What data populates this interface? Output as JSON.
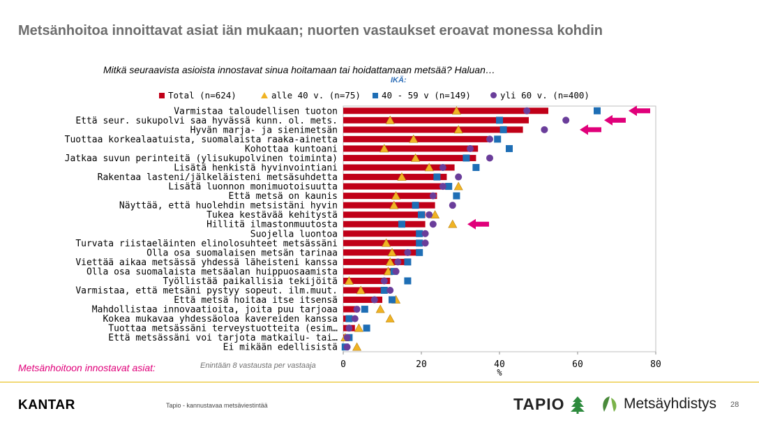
{
  "title": "Metsänhoitoa innoittavat asiat iän mukaan; nuorten vastaukset eroavat monessa kohdin",
  "question": "Mitkä seuraavista asioista innostavat sinua hoitamaan tai hoidattamaan metsää? Haluan…",
  "age_label": "IKÄ:",
  "footer": {
    "section_label": "Metsänhoitoon innostavat asiat:",
    "footnote": "Enintään 8 vastausta per vastaaja",
    "brand_left": "KANTAR",
    "source": "Tapio - kannustavaa metsäviestintää",
    "brand_tapio": "TAPIO",
    "brand_metsa": "Metsäyhdistys",
    "page_number": "28"
  },
  "colors": {
    "total": "#c00018",
    "under40": "#f0b323",
    "age40_59": "#1e6eb5",
    "over60": "#6a3d9a",
    "arrow": "#e0007a",
    "title": "#6d6d6d"
  },
  "chart_data": {
    "type": "bar",
    "orientation": "horizontal",
    "xlabel": "%",
    "xlim": [
      0,
      80
    ],
    "xticks": [
      0,
      20,
      40,
      60,
      80
    ],
    "grid": false,
    "legend_position": "top",
    "categories": [
      "Varmistaa taloudellisen tuoton",
      "Että seur. sukupolvi saa hyvässä kunn. ol. mets.",
      "Hyvän marja- ja sienimetsän",
      "Tuottaa korkealaatuista, suomalaista raaka-ainetta",
      "Kohottaa kuntoani",
      "Jatkaa suvun perinteitä (ylisukupolvinen toiminta)",
      "Lisätä henkistä hyvinvointiani",
      "Rakentaa lasteni/jälkeläisteni metsäsuhdetta",
      "Lisätä luonnon monimuotoisuutta",
      "Että metsä on kaunis",
      "Näyttää, että huolehdin metsistäni hyvin",
      "Tukea kestävää kehitystä",
      "Hillitä ilmastonmuutosta",
      "Suojella luontoa",
      "Turvata riistaeläinten elinolosuhteet metsässäni",
      "Olla osa suomalaisen metsän tarinaa",
      "Viettää aikaa metsässä yhdessä läheisteni kanssa",
      "Olla osa suomalaista metsäalan huippuosaamista",
      "Työllistää paikallisia tekijöitä",
      "Varmistaa, että metsäni pystyy sopeut. ilm.muut.",
      "Että metsä hoitaa itse itsensä",
      "Mahdollistaa innovaatioita, joita puu tarjoaa",
      "Kokea mukavaa yhdessäoloa kavereiden kanssa",
      "Tuottaa metsässäni terveystuotteita (esim…",
      "Että metsässäni voi tarjota matkailu- tai…",
      "Ei mikään edellisistä"
    ],
    "series": [
      {
        "name": "Total (n=624)",
        "marker": "bar",
        "values": [
          52.5,
          47.5,
          46,
          37,
          34.5,
          34,
          28.5,
          26.5,
          26.5,
          24,
          23.5,
          21,
          21,
          20,
          20,
          19.5,
          16,
          14,
          12,
          11,
          10,
          4,
          2,
          3,
          1.5,
          1
        ]
      },
      {
        "name": "alle 40 v. (n=75)",
        "marker": "triangle",
        "values": [
          29,
          12,
          29.5,
          18,
          10.5,
          18.5,
          22,
          15,
          29.5,
          13.5,
          13,
          23.5,
          28,
          null,
          11,
          12.5,
          12,
          11.5,
          1.5,
          4.5,
          13.5,
          9.5,
          12,
          4,
          0.5,
          3.5
        ]
      },
      {
        "name": "40 - 59 v (n=149)",
        "marker": "square",
        "values": [
          65,
          40,
          41,
          39.5,
          42.5,
          31.5,
          34,
          24,
          27,
          29,
          18.5,
          20,
          15,
          19.5,
          19.5,
          19.5,
          16.5,
          13,
          16.5,
          10.5,
          12.5,
          5.5,
          1.5,
          6,
          1.5,
          0.5
        ]
      },
      {
        "name": "yli 60 v. (n=400)",
        "marker": "circle",
        "values": [
          47,
          57,
          51.5,
          37.5,
          32.5,
          37.5,
          25.5,
          29.5,
          25.5,
          23,
          28,
          22,
          23,
          21,
          21,
          16.5,
          14,
          13.5,
          10.5,
          12,
          8,
          3.5,
          3,
          1.5,
          1,
          1
        ]
      }
    ],
    "highlighted_categories": [
      0,
      1,
      2,
      12
    ]
  }
}
